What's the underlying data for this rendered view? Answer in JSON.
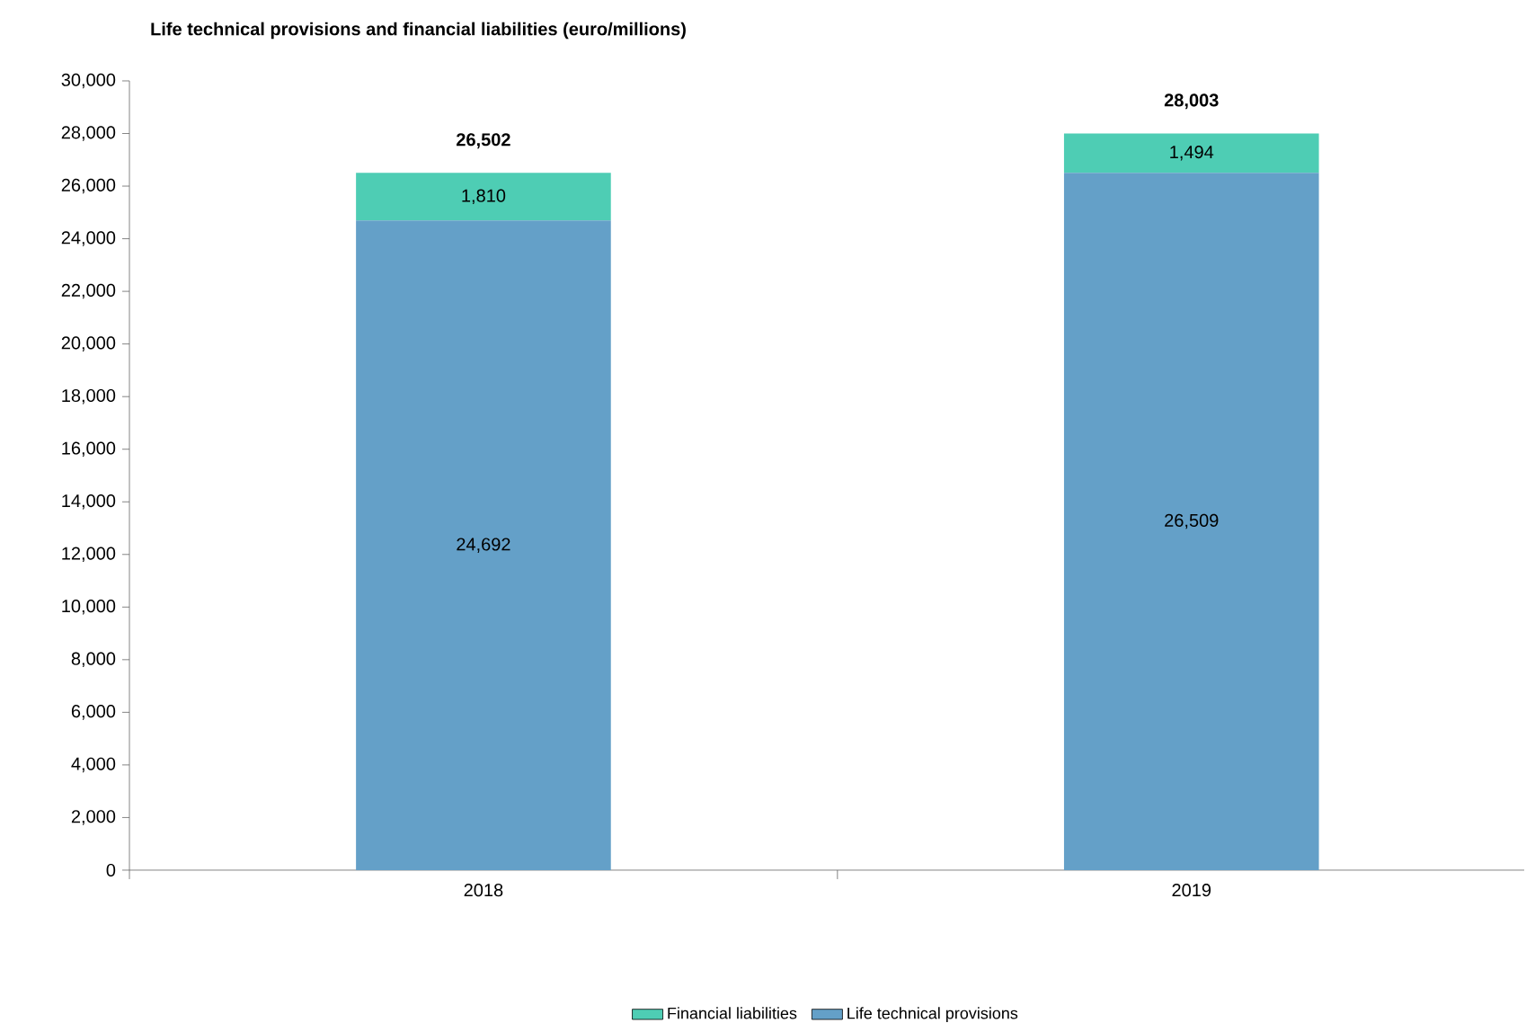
{
  "chart_data": {
    "type": "bar",
    "stacked": true,
    "title": "Life technical provisions and financial liabilities (euro/millions)",
    "categories": [
      "2018",
      "2019"
    ],
    "series": [
      {
        "name": "Life technical provisions",
        "color": "#64a0c8",
        "values": [
          24692,
          26509
        ],
        "value_labels": [
          "24,692",
          "26,509"
        ]
      },
      {
        "name": "Financial liabilities",
        "color": "#4ecdb4",
        "values": [
          1810,
          1494
        ],
        "value_labels": [
          "1,810",
          "1,494"
        ]
      }
    ],
    "totals": [
      "26,502",
      "28,003"
    ],
    "ylim": [
      0,
      30000
    ],
    "yticks": [
      {
        "value": 0,
        "label": "0"
      },
      {
        "value": 2000,
        "label": "2,000"
      },
      {
        "value": 4000,
        "label": "4,000"
      },
      {
        "value": 6000,
        "label": "6,000"
      },
      {
        "value": 8000,
        "label": "8,000"
      },
      {
        "value": 10000,
        "label": "10,000"
      },
      {
        "value": 12000,
        "label": "12,000"
      },
      {
        "value": 14000,
        "label": "14,000"
      },
      {
        "value": 16000,
        "label": "16,000"
      },
      {
        "value": 18000,
        "label": "18,000"
      },
      {
        "value": 20000,
        "label": "20,000"
      },
      {
        "value": 22000,
        "label": "22,000"
      },
      {
        "value": 24000,
        "label": "24,000"
      },
      {
        "value": 26000,
        "label": "26,000"
      },
      {
        "value": 28000,
        "label": "28,000"
      },
      {
        "value": 30000,
        "label": "30,000"
      }
    ],
    "legend": "bottom"
  }
}
